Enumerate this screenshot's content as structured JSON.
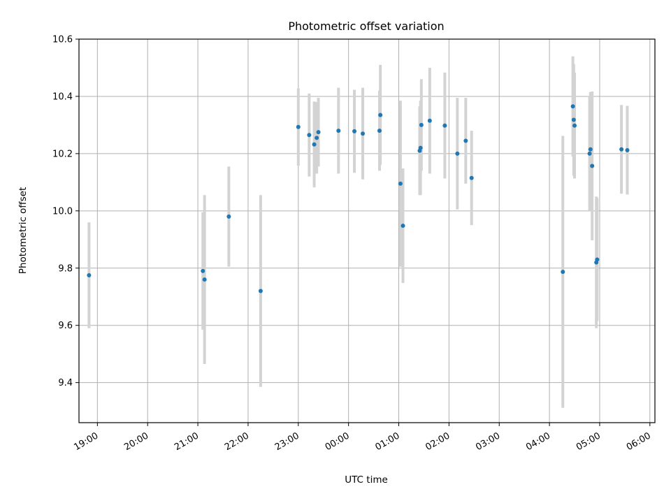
{
  "chart_data": {
    "type": "scatter",
    "title": "Photometric offset variation",
    "xlabel": "UTC time",
    "ylabel": "Photometric offset",
    "x_axis": {
      "type": "time",
      "range": [
        "18:38",
        "06:06"
      ],
      "ticks": [
        "19:00",
        "20:00",
        "21:00",
        "22:00",
        "23:00",
        "00:00",
        "01:00",
        "02:00",
        "03:00",
        "04:00",
        "05:00",
        "06:00"
      ]
    },
    "y_axis": {
      "range": [
        9.26,
        10.6
      ],
      "ticks": [
        "9.4",
        "9.6",
        "9.8",
        "10.0",
        "10.2",
        "10.4",
        "10.6"
      ]
    },
    "grid": true,
    "colors": {
      "point": "#1f77b4",
      "errorbar": "#d3d3d3",
      "grid": "#b0b0b0"
    },
    "points": [
      {
        "time": "18:50",
        "y": 9.775,
        "err": 0.185
      },
      {
        "time": "21:06",
        "y": 9.79,
        "err": 0.205
      },
      {
        "time": "21:08",
        "y": 9.76,
        "err": 0.295
      },
      {
        "time": "21:37",
        "y": 9.98,
        "err": 0.175
      },
      {
        "time": "22:15",
        "y": 9.72,
        "err": 0.335
      },
      {
        "time": "23:00",
        "y": 10.293,
        "err": 0.135
      },
      {
        "time": "23:13",
        "y": 10.265,
        "err": 0.145
      },
      {
        "time": "23:19",
        "y": 10.232,
        "err": 0.15
      },
      {
        "time": "23:22",
        "y": 10.255,
        "err": 0.125
      },
      {
        "time": "23:24",
        "y": 10.275,
        "err": 0.12
      },
      {
        "time": "23:48",
        "y": 10.28,
        "err": 0.15
      },
      {
        "time": "00:07",
        "y": 10.278,
        "err": 0.145
      },
      {
        "time": "00:17",
        "y": 10.27,
        "err": 0.16
      },
      {
        "time": "00:37",
        "y": 10.28,
        "err": 0.14
      },
      {
        "time": "00:38",
        "y": 10.335,
        "err": 0.175
      },
      {
        "time": "01:02",
        "y": 10.095,
        "err": 0.29
      },
      {
        "time": "01:05",
        "y": 9.948,
        "err": 0.2
      },
      {
        "time": "01:25",
        "y": 10.21,
        "err": 0.155
      },
      {
        "time": "01:26",
        "y": 10.22,
        "err": 0.165
      },
      {
        "time": "01:27",
        "y": 10.3,
        "err": 0.16
      },
      {
        "time": "01:37",
        "y": 10.315,
        "err": 0.185
      },
      {
        "time": "01:55",
        "y": 10.298,
        "err": 0.185
      },
      {
        "time": "02:10",
        "y": 10.2,
        "err": 0.195
      },
      {
        "time": "02:20",
        "y": 10.245,
        "err": 0.15
      },
      {
        "time": "02:27",
        "y": 10.115,
        "err": 0.165
      },
      {
        "time": "04:16",
        "y": 9.787,
        "err": 0.475
      },
      {
        "time": "04:28",
        "y": 10.365,
        "err": 0.175
      },
      {
        "time": "04:29",
        "y": 10.318,
        "err": 0.195
      },
      {
        "time": "04:30",
        "y": 10.298,
        "err": 0.185
      },
      {
        "time": "04:48",
        "y": 10.2,
        "err": 0.2
      },
      {
        "time": "04:49",
        "y": 10.215,
        "err": 0.2
      },
      {
        "time": "04:51",
        "y": 10.157,
        "err": 0.26
      },
      {
        "time": "04:56",
        "y": 9.82,
        "err": 0.23
      },
      {
        "time": "04:57",
        "y": 9.83,
        "err": 0.215
      },
      {
        "time": "05:26",
        "y": 10.215,
        "err": 0.155
      },
      {
        "time": "05:33",
        "y": 10.212,
        "err": 0.155
      }
    ]
  }
}
